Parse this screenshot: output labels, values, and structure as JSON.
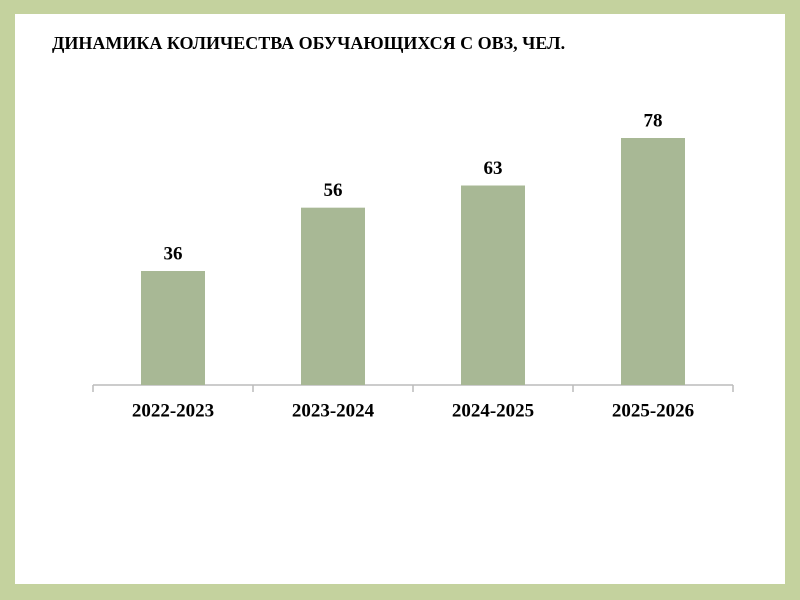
{
  "chart_data": {
    "type": "bar",
    "title": "ДИНАМИКА КОЛИЧЕСТВА ОБУЧАЮЩИХСЯ С ОВЗ, ЧЕЛ.",
    "categories": [
      "2022-2023",
      "2023-2024",
      "2024-2025",
      "2025-2026"
    ],
    "values": [
      36,
      56,
      63,
      78
    ],
    "color": "#a8b895"
  }
}
